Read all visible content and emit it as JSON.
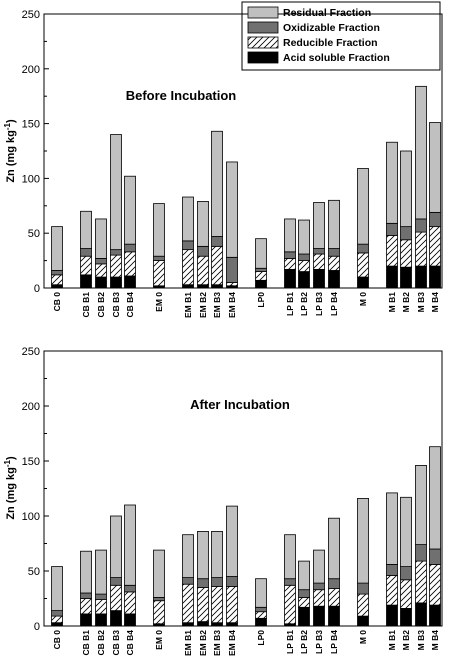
{
  "chart_data": [
    {
      "type": "bar",
      "stacked": true,
      "title": "Before Incubation",
      "ylabel": "Zn (mg kg",
      "ylabel_sup": "-1",
      "ylabel_close": ")",
      "ylim": [
        0,
        250
      ],
      "yticks": [
        "0",
        "50",
        "100",
        "150",
        "200",
        "250"
      ],
      "categories": [
        "CB 0",
        "CB B1",
        "CB B2",
        "CB B3",
        "CB B4",
        "EM 0",
        "EM B1",
        "EM B2",
        "EM B3",
        "EM B4",
        "LP0",
        "LP B1",
        "LP B2",
        "LP B3",
        "LP B4",
        "M 0",
        "M B1",
        "M B2",
        "M B3",
        "M B4"
      ],
      "series": [
        {
          "name": "Acid soluble Fraction",
          "values": [
            3,
            12,
            10,
            10,
            11,
            2,
            3,
            3,
            3,
            2,
            7,
            17,
            15,
            17,
            16,
            10,
            20,
            19,
            20,
            20
          ]
        },
        {
          "name": "Reducible Fraction",
          "values": [
            9,
            17,
            12,
            20,
            22,
            23,
            32,
            26,
            35,
            3,
            8,
            10,
            10,
            14,
            13,
            22,
            28,
            25,
            31,
            36
          ]
        },
        {
          "name": "Oxidizable Fraction",
          "values": [
            4,
            7,
            5,
            5,
            7,
            4,
            8,
            9,
            9,
            23,
            3,
            6,
            6,
            5,
            7,
            8,
            11,
            12,
            12,
            13
          ]
        },
        {
          "name": "Residual Fraction",
          "values": [
            40,
            34,
            36,
            105,
            62,
            48,
            40,
            41,
            96,
            87,
            27,
            30,
            31,
            42,
            44,
            69,
            74,
            69,
            121,
            82
          ]
        }
      ]
    },
    {
      "type": "bar",
      "stacked": true,
      "title": "After Incubation",
      "ylabel": "Zn (mg kg",
      "ylabel_sup": "-1",
      "ylabel_close": ")",
      "ylim": [
        0,
        250
      ],
      "yticks": [
        "0",
        "50",
        "100",
        "150",
        "200",
        "250"
      ],
      "categories": [
        "CB 0",
        "CB B1",
        "CB B2",
        "CB B3",
        "CB B4",
        "EM 0",
        "EM B1",
        "EM B2",
        "EM B3",
        "EM B4",
        "LP0",
        "LP B1",
        "LP B2",
        "LP B3",
        "LP B4",
        "M 0",
        "M B1",
        "M B2",
        "M B3",
        "M B4"
      ],
      "series": [
        {
          "name": "Acid soluble Fraction",
          "values": [
            3,
            11,
            11,
            14,
            11,
            2,
            3,
            4,
            3,
            3,
            7,
            2,
            17,
            18,
            18,
            9,
            19,
            16,
            21,
            19
          ]
        },
        {
          "name": "Reducible Fraction",
          "values": [
            6,
            14,
            13,
            23,
            20,
            21,
            35,
            31,
            33,
            33,
            6,
            35,
            9,
            15,
            16,
            20,
            27,
            26,
            38,
            37
          ]
        },
        {
          "name": "Oxidizable Fraction",
          "values": [
            5,
            5,
            5,
            7,
            6,
            3,
            6,
            8,
            8,
            9,
            4,
            6,
            7,
            6,
            9,
            10,
            10,
            12,
            15,
            14
          ]
        },
        {
          "name": "Residual Fraction",
          "values": [
            40,
            38,
            40,
            56,
            73,
            43,
            39,
            43,
            42,
            64,
            26,
            40,
            26,
            30,
            55,
            77,
            65,
            63,
            72,
            93
          ]
        }
      ]
    }
  ],
  "legend": {
    "position": "top-right",
    "items": [
      {
        "label": "Residual Fraction",
        "fill": "#c0c0c0"
      },
      {
        "label": "Oxidizable Fraction",
        "fill": "#707070"
      },
      {
        "label": "Reducible Fraction",
        "fill": "hatch"
      },
      {
        "label": "Acid soluble Fraction",
        "fill": "#000000"
      }
    ]
  },
  "colors": {
    "residual": "#c0c0c0",
    "oxidizable": "#707070",
    "reducible_bg": "#ffffff",
    "acid": "#000000"
  }
}
